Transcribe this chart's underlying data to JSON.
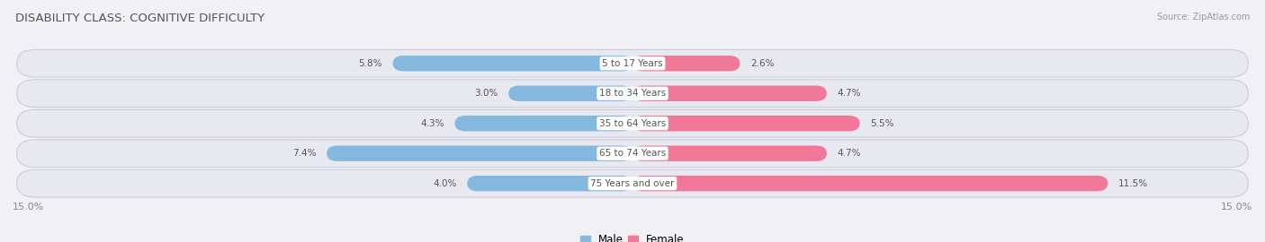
{
  "title": "DISABILITY CLASS: COGNITIVE DIFFICULTY",
  "source": "Source: ZipAtlas.com",
  "categories": [
    "5 to 17 Years",
    "18 to 34 Years",
    "35 to 64 Years",
    "65 to 74 Years",
    "75 Years and over"
  ],
  "male_values": [
    5.8,
    3.0,
    4.3,
    7.4,
    4.0
  ],
  "female_values": [
    2.6,
    4.7,
    5.5,
    4.7,
    11.5
  ],
  "max_val": 15.0,
  "male_color": "#85b8de",
  "female_color": "#f07898",
  "row_bg_color": "#e8e8f0",
  "label_color": "#555555",
  "center_label_bg": "#ffffff",
  "title_color": "#555555",
  "source_color": "#999999",
  "axis_label_color": "#888888",
  "legend_male_color": "#85b8de",
  "legend_female_color": "#f07898",
  "title_fontsize": 9.5,
  "bar_fontsize": 7.5,
  "legend_fontsize": 8.5
}
